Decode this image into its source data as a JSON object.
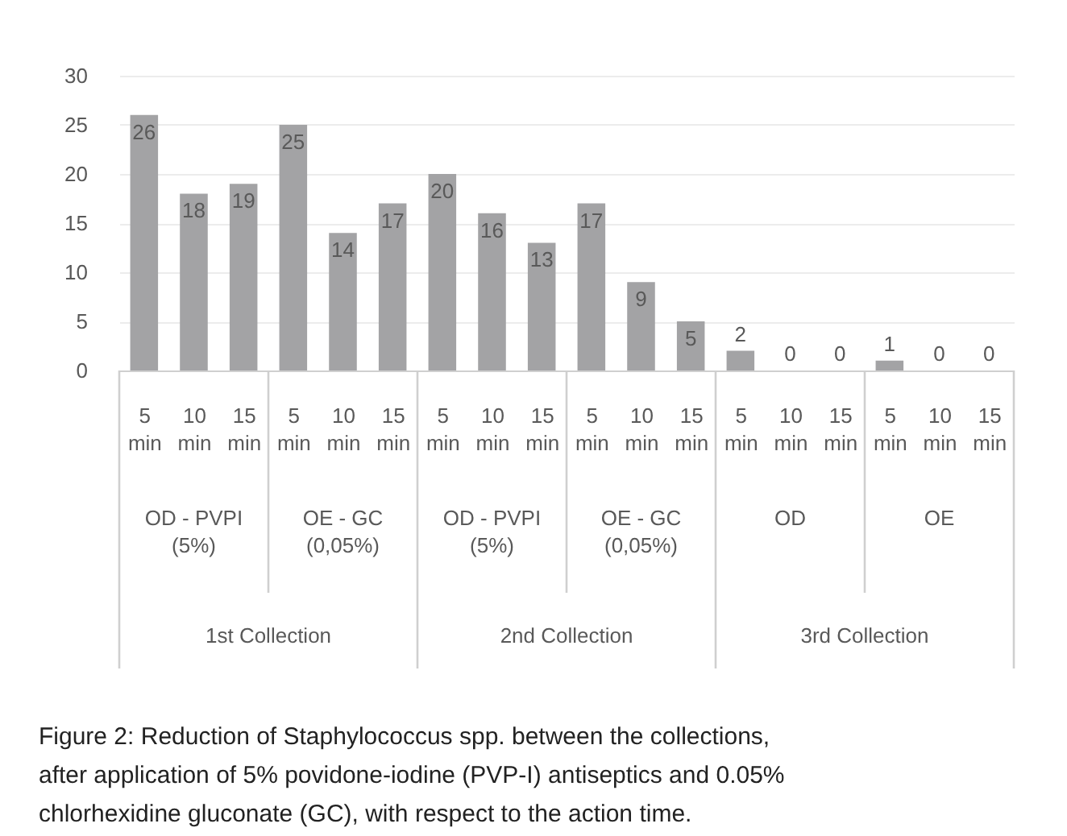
{
  "chart_data": {
    "type": "bar",
    "categories": [
      "5 min",
      "10 min",
      "15 min",
      "5 min",
      "10 min",
      "15 min",
      "5 min",
      "10 min",
      "15 min",
      "5 min",
      "10 min",
      "15 min",
      "5 min",
      "10 min",
      "15 min",
      "5 min",
      "10 min",
      "15 min"
    ],
    "values": [
      26,
      18,
      19,
      25,
      14,
      17,
      20,
      16,
      13,
      17,
      9,
      5,
      2,
      0,
      0,
      1,
      0,
      0
    ],
    "color": "#a3a3a5",
    "ylim": [
      0,
      30
    ],
    "yticks": [
      0,
      5,
      10,
      15,
      20,
      25,
      30
    ],
    "grid": "y",
    "data_labels": true,
    "annotations": [
      "OD - PVPI (5%)",
      "OE - GC (0,05%)",
      "OD - PVPI (5%)",
      "OE - GC (0,05%)",
      "OD",
      "OE",
      "1st Collection",
      "2nd Collection",
      "3rd Collection",
      "Figure 2: Reduction of Staphylococcus spp. between the collections, after application of 5% povidone-iodine (PVP-I) antiseptics and 0.05% chlorhexidine gluconate (GC), with respect to the action time."
    ]
  }
}
